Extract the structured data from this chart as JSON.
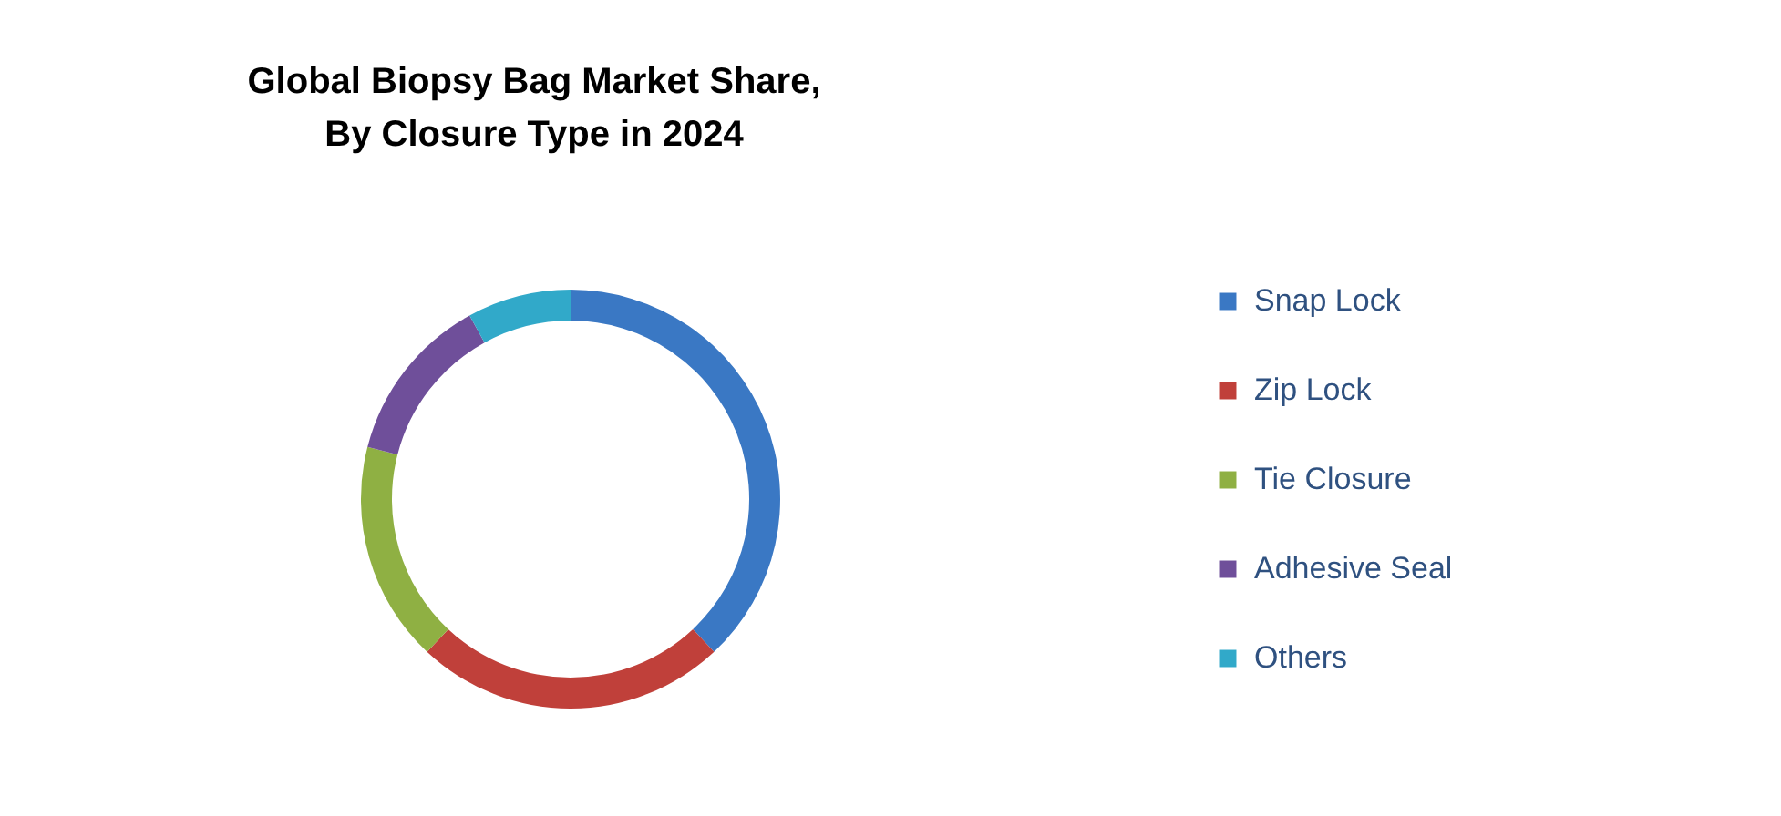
{
  "chart_data": {
    "type": "donut",
    "title": "Global Biopsy Bag Market Share,\nBy Closure Type in 2024",
    "categories": [
      "Snap Lock",
      "Zip Lock",
      "Tie Closure",
      "Adhesive Seal",
      "Others"
    ],
    "values": [
      38,
      24,
      17,
      13,
      8
    ],
    "colors": [
      "#3a78c4",
      "#c0403a",
      "#8fb043",
      "#6f4f9a",
      "#31a9c9"
    ],
    "legend": "right"
  }
}
